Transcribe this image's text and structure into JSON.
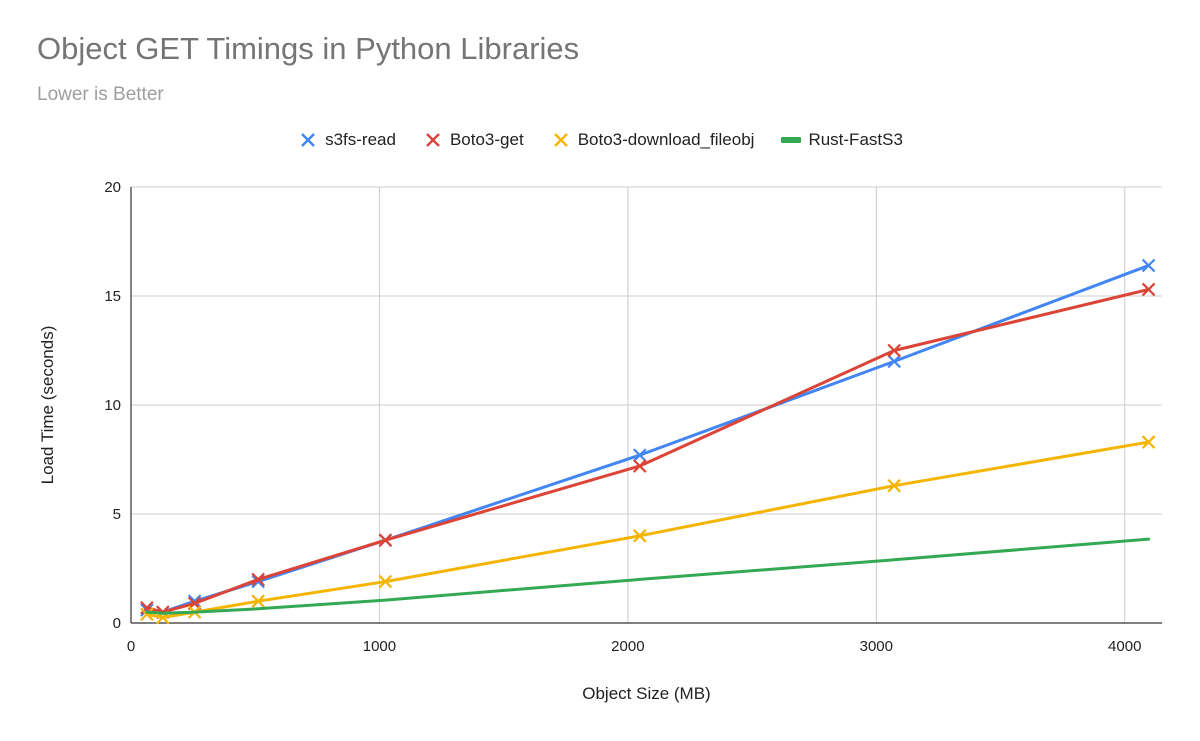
{
  "chart_data": {
    "type": "line",
    "title": "Object GET Timings in Python Libraries",
    "subtitle": "Lower is Better",
    "xlabel": "Object Size (MB)",
    "ylabel": "Load Time (seconds)",
    "xlim": [
      0,
      4150
    ],
    "ylim": [
      0,
      20
    ],
    "x_ticks": [
      0,
      1000,
      2000,
      3000,
      4000
    ],
    "y_ticks": [
      0,
      5,
      10,
      15,
      20
    ],
    "grid": true,
    "legend_position": "top",
    "series": [
      {
        "name": "s3fs-read",
        "color": "#4285f4",
        "marker": "x",
        "points": [
          [
            64,
            0.6
          ],
          [
            128,
            0.5
          ],
          [
            256,
            1.0
          ],
          [
            512,
            1.9
          ],
          [
            1024,
            3.8
          ],
          [
            2048,
            7.7
          ],
          [
            3072,
            12.0
          ],
          [
            4096,
            16.4
          ]
        ]
      },
      {
        "name": "Boto3-get",
        "color": "#db4437",
        "marker": "x",
        "points": [
          [
            64,
            0.7
          ],
          [
            128,
            0.5
          ],
          [
            256,
            0.9
          ],
          [
            512,
            2.0
          ],
          [
            1024,
            3.8
          ],
          [
            2048,
            7.2
          ],
          [
            3072,
            12.5
          ],
          [
            4096,
            15.3
          ]
        ]
      },
      {
        "name": "Boto3-download_fileobj",
        "color": "#f4b400",
        "marker": "x",
        "points": [
          [
            64,
            0.4
          ],
          [
            128,
            0.25
          ],
          [
            256,
            0.5
          ],
          [
            512,
            1.0
          ],
          [
            1024,
            1.9
          ],
          [
            2048,
            4.0
          ],
          [
            3072,
            6.3
          ],
          [
            4096,
            8.3
          ]
        ]
      },
      {
        "name": "Rust-FastS3",
        "color": "#34a853",
        "marker": "none",
        "points": [
          [
            64,
            0.5
          ],
          [
            128,
            0.45
          ],
          [
            256,
            0.5
          ],
          [
            512,
            0.65
          ],
          [
            1024,
            1.05
          ],
          [
            2048,
            2.0
          ],
          [
            3072,
            2.9
          ],
          [
            4096,
            3.85
          ]
        ]
      }
    ]
  }
}
